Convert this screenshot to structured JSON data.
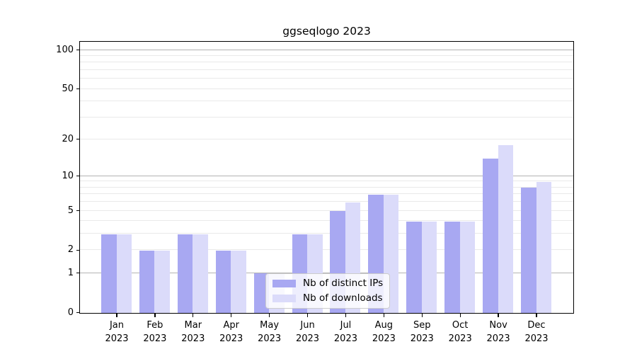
{
  "title": "ggseqlogo 2023",
  "chart_data": {
    "type": "bar",
    "title": "ggseqlogo 2023",
    "categories": [
      {
        "month": "Jan",
        "year": "2023"
      },
      {
        "month": "Feb",
        "year": "2023"
      },
      {
        "month": "Mar",
        "year": "2023"
      },
      {
        "month": "Apr",
        "year": "2023"
      },
      {
        "month": "May",
        "year": "2023"
      },
      {
        "month": "Jun",
        "year": "2023"
      },
      {
        "month": "Jul",
        "year": "2023"
      },
      {
        "month": "Aug",
        "year": "2023"
      },
      {
        "month": "Sep",
        "year": "2023"
      },
      {
        "month": "Oct",
        "year": "2023"
      },
      {
        "month": "Nov",
        "year": "2023"
      },
      {
        "month": "Dec",
        "year": "2023"
      }
    ],
    "series": [
      {
        "name": "Nb of distinct IPs",
        "color": "#a8a8f2",
        "values": [
          3,
          2,
          3,
          2,
          1,
          3,
          5,
          7,
          4,
          4,
          14,
          8
        ]
      },
      {
        "name": "Nb of downloads",
        "color": "#dbdbfa",
        "values": [
          3,
          2,
          3,
          2,
          1,
          3,
          6,
          7,
          4,
          4,
          18,
          9
        ]
      }
    ],
    "xlabel": "",
    "ylabel": "",
    "yaxis": {
      "scale": "log1p",
      "range": [
        0,
        115
      ],
      "tick_labels": [
        0,
        1,
        2,
        5,
        10,
        20,
        50,
        100
      ],
      "major_gridlines": [
        1,
        10,
        100
      ],
      "minor_gridlines": [
        2,
        3,
        4,
        5,
        6,
        7,
        8,
        9,
        20,
        30,
        40,
        50,
        60,
        70,
        80,
        90
      ]
    },
    "legend": {
      "position": "lower center"
    },
    "grid": true,
    "colors": {
      "grid_major": "#b3b3b3",
      "grid_minor": "#e9e9e9",
      "spine": "#000000"
    }
  }
}
